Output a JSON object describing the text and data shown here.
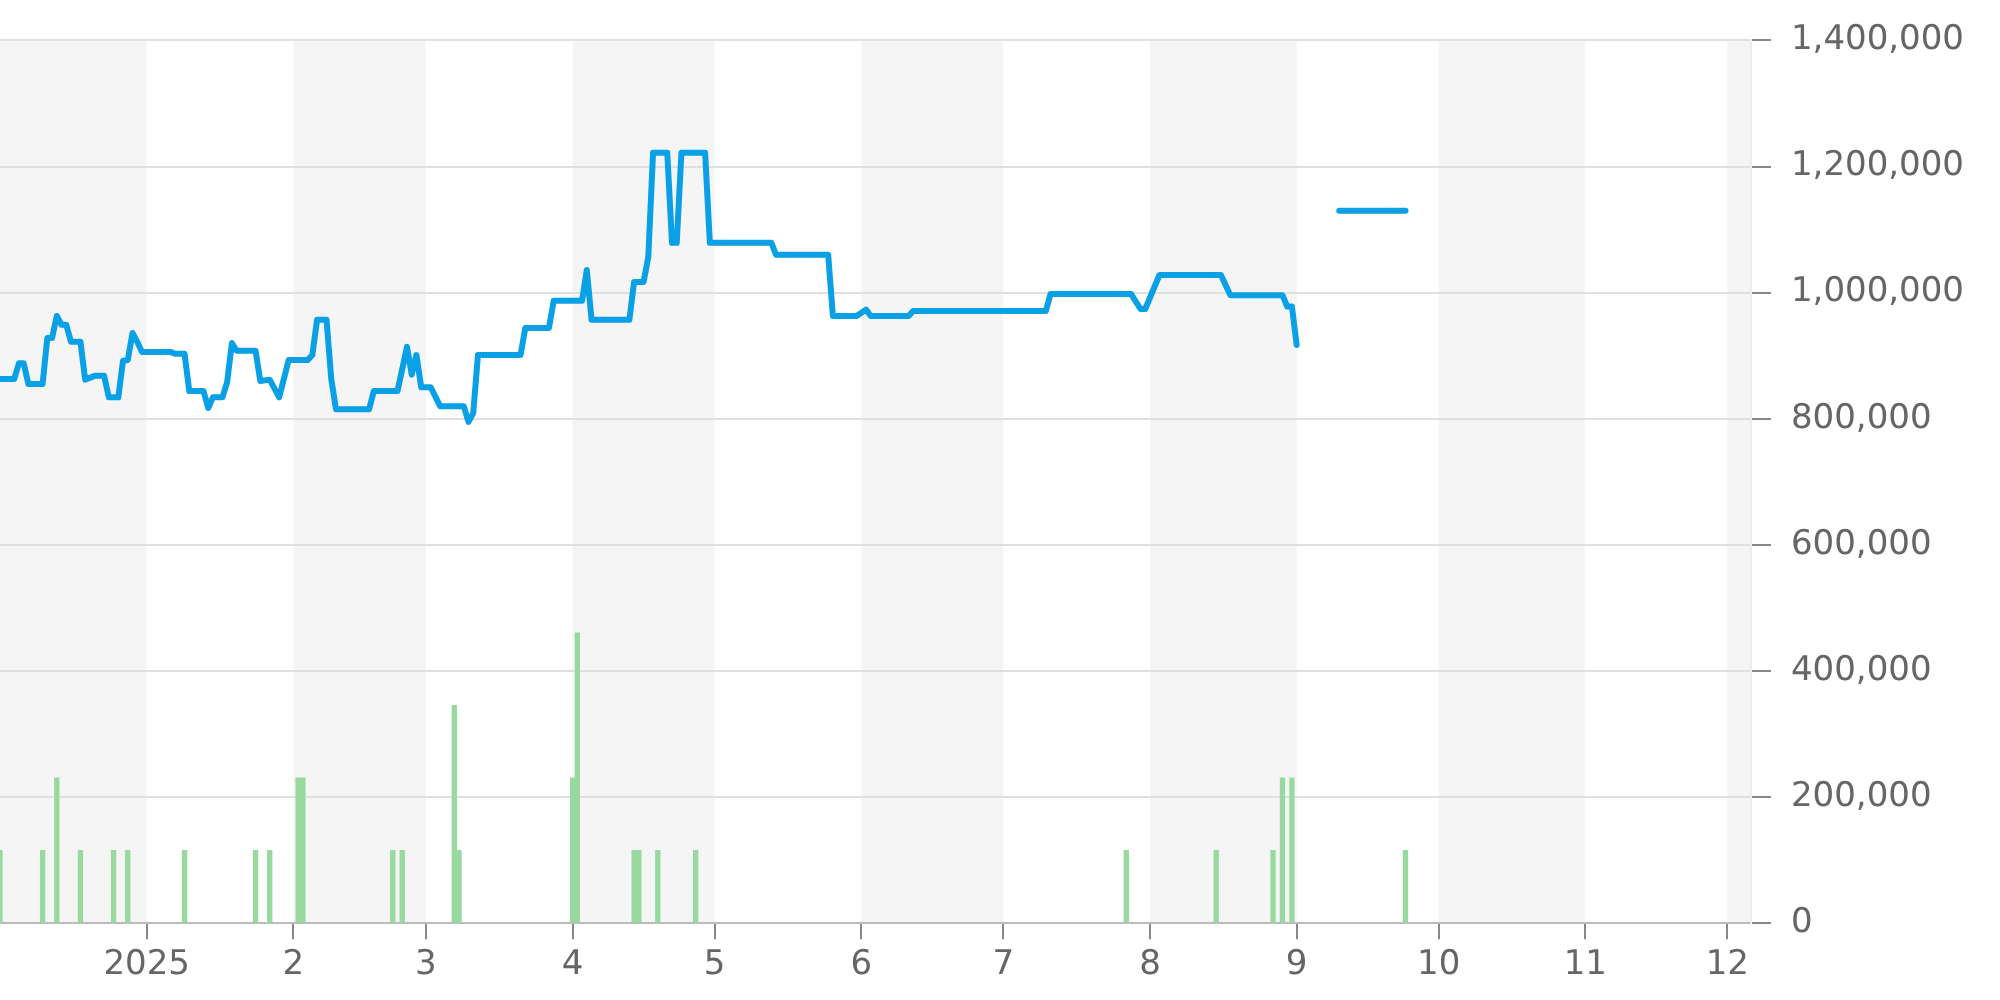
{
  "chart_data": {
    "type": "line",
    "xlim": [
      "2024-12-01",
      "2025-12-06"
    ],
    "xticks": [
      {
        "value": "2025-01-01",
        "label": "2025"
      },
      {
        "value": "2025-02-01",
        "label": "2"
      },
      {
        "value": "2025-03-01",
        "label": "3"
      },
      {
        "value": "2025-04-01",
        "label": "4"
      },
      {
        "value": "2025-05-01",
        "label": "5"
      },
      {
        "value": "2025-06-01",
        "label": "6"
      },
      {
        "value": "2025-07-01",
        "label": "7"
      },
      {
        "value": "2025-08-01",
        "label": "8"
      },
      {
        "value": "2025-09-01",
        "label": "9"
      },
      {
        "value": "2025-10-01",
        "label": "10"
      },
      {
        "value": "2025-11-01",
        "label": "11"
      },
      {
        "value": "2025-12-01",
        "label": "12"
      }
    ],
    "ylim": [
      0,
      1400000
    ],
    "yticks": [
      {
        "value": 0,
        "label": "0"
      },
      {
        "value": 200000,
        "label": "200,000"
      },
      {
        "value": 400000,
        "label": "400,000"
      },
      {
        "value": 600000,
        "label": "600,000"
      },
      {
        "value": 800000,
        "label": "800,000"
      },
      {
        "value": 1000000,
        "label": "1,000,000"
      },
      {
        "value": 1200000,
        "label": "1,200,000"
      },
      {
        "value": 1400000,
        "label": "1,400,000"
      }
    ],
    "grid": "y",
    "legend": false,
    "marker": "none",
    "line_style": "solid",
    "bands": [
      {
        "axis": "x",
        "from": "2024-12-01",
        "to": "2025-01-01",
        "color": "#f5f5f5"
      },
      {
        "axis": "x",
        "from": "2025-02-01",
        "to": "2025-03-01",
        "color": "#f5f5f5"
      },
      {
        "axis": "x",
        "from": "2025-04-01",
        "to": "2025-05-01",
        "color": "#f5f5f5"
      },
      {
        "axis": "x",
        "from": "2025-06-01",
        "to": "2025-07-01",
        "color": "#f5f5f5"
      },
      {
        "axis": "x",
        "from": "2025-08-01",
        "to": "2025-09-01",
        "color": "#f5f5f5"
      },
      {
        "axis": "x",
        "from": "2025-10-01",
        "to": "2025-11-01",
        "color": "#f5f5f5"
      },
      {
        "axis": "x",
        "from": "2025-12-01",
        "to": "2025-12-06",
        "color": "#f5f5f5"
      }
    ],
    "series": [
      {
        "type": "bar",
        "color": "#98d9a0",
        "x": [
          "2024-12-01",
          "2024-12-10",
          "2024-12-13",
          "2024-12-18",
          "2024-12-25",
          "2024-12-28",
          "2025-01-09",
          "2025-01-24",
          "2025-01-27",
          "2025-02-02",
          "2025-02-03",
          "2025-02-22",
          "2025-02-24",
          "2025-03-07",
          "2025-03-08",
          "2025-04-01",
          "2025-04-02",
          "2025-04-14",
          "2025-04-15",
          "2025-04-19",
          "2025-04-27",
          "2025-07-27",
          "2025-08-15",
          "2025-08-27",
          "2025-08-29",
          "2025-08-31",
          "2025-09-24"
        ],
        "values": [
          115000,
          115000,
          230000,
          115000,
          115000,
          115000,
          115000,
          115000,
          115000,
          230000,
          230000,
          115000,
          115000,
          345000,
          115000,
          230000,
          460000,
          115000,
          115000,
          115000,
          115000,
          115000,
          115000,
          115000,
          230000,
          230000,
          115000
        ]
      },
      {
        "color": "#0aa0e6",
        "x": [
          "2024-12-01",
          "2024-12-03",
          "2024-12-04",
          "2024-12-05",
          "2024-12-06",
          "2024-12-07",
          "2024-12-10",
          "2024-12-11",
          "2024-12-12",
          "2024-12-13",
          "2024-12-14",
          "2024-12-15",
          "2024-12-16",
          "2024-12-18",
          "2024-12-19",
          "2024-12-21",
          "2024-12-23",
          "2024-12-24",
          "2024-12-26",
          "2024-12-27",
          "2024-12-28",
          "2024-12-29",
          "2024-12-30",
          "2024-12-31",
          "2025-01-06",
          "2025-01-07",
          "2025-01-09",
          "2025-01-10",
          "2025-01-13",
          "2025-01-14",
          "2025-01-15",
          "2025-01-17",
          "2025-01-18",
          "2025-01-19",
          "2025-01-20",
          "2025-01-24",
          "2025-01-25",
          "2025-01-27",
          "2025-01-29",
          "2025-01-31",
          "2025-02-04",
          "2025-02-05",
          "2025-02-06",
          "2025-02-08",
          "2025-02-09",
          "2025-02-10",
          "2025-02-17",
          "2025-02-18",
          "2025-02-23",
          "2025-02-25",
          "2025-02-26",
          "2025-02-27",
          "2025-02-28",
          "2025-03-02",
          "2025-03-04",
          "2025-03-09",
          "2025-03-10",
          "2025-03-11",
          "2025-03-12",
          "2025-03-21",
          "2025-03-22",
          "2025-03-27",
          "2025-03-28",
          "2025-04-03",
          "2025-04-04",
          "2025-04-05",
          "2025-04-13",
          "2025-04-14",
          "2025-04-16",
          "2025-04-17",
          "2025-04-18",
          "2025-04-21",
          "2025-04-22",
          "2025-04-23",
          "2025-04-24",
          "2025-04-29",
          "2025-04-30",
          "2025-05-13",
          "2025-05-14",
          "2025-05-25",
          "2025-05-26",
          "2025-05-31",
          "2025-06-02",
          "2025-06-03",
          "2025-06-11",
          "2025-06-12",
          "2025-07-10",
          "2025-07-11",
          "2025-07-28",
          "2025-07-30",
          "2025-07-31",
          "2025-08-03",
          "2025-08-16",
          "2025-08-18",
          "2025-08-29",
          "2025-08-30",
          "2025-08-31",
          "2025-09-01"
        ],
        "values": [
          863000,
          863000,
          863000,
          888000,
          888000,
          855000,
          855000,
          928000,
          928000,
          963000,
          949000,
          949000,
          922000,
          922000,
          862000,
          868000,
          868000,
          834000,
          834000,
          892000,
          893000,
          936000,
          922000,
          906000,
          906000,
          903000,
          903000,
          844000,
          844000,
          817000,
          834000,
          834000,
          858000,
          920000,
          908000,
          908000,
          860000,
          862000,
          834000,
          893000,
          893000,
          901000,
          957000,
          957000,
          863000,
          815000,
          815000,
          844000,
          844000,
          914000,
          870000,
          901000,
          850000,
          850000,
          820000,
          820000,
          795000,
          809000,
          901000,
          901000,
          944000,
          944000,
          987000,
          987000,
          1036000,
          957000,
          957000,
          1017000,
          1017000,
          1057000,
          1222000,
          1222000,
          1079000,
          1079000,
          1222000,
          1222000,
          1079000,
          1079000,
          1060000,
          1060000,
          963000,
          963000,
          973000,
          963000,
          963000,
          971000,
          971000,
          998000,
          998000,
          974000,
          974000,
          1028000,
          1028000,
          996000,
          996000,
          978000,
          978000,
          917000
        ]
      },
      {
        "color": "#0aa0e6",
        "x": [
          "2025-09-10",
          "2025-09-24"
        ],
        "values": [
          1130000,
          1130000
        ]
      }
    ]
  }
}
